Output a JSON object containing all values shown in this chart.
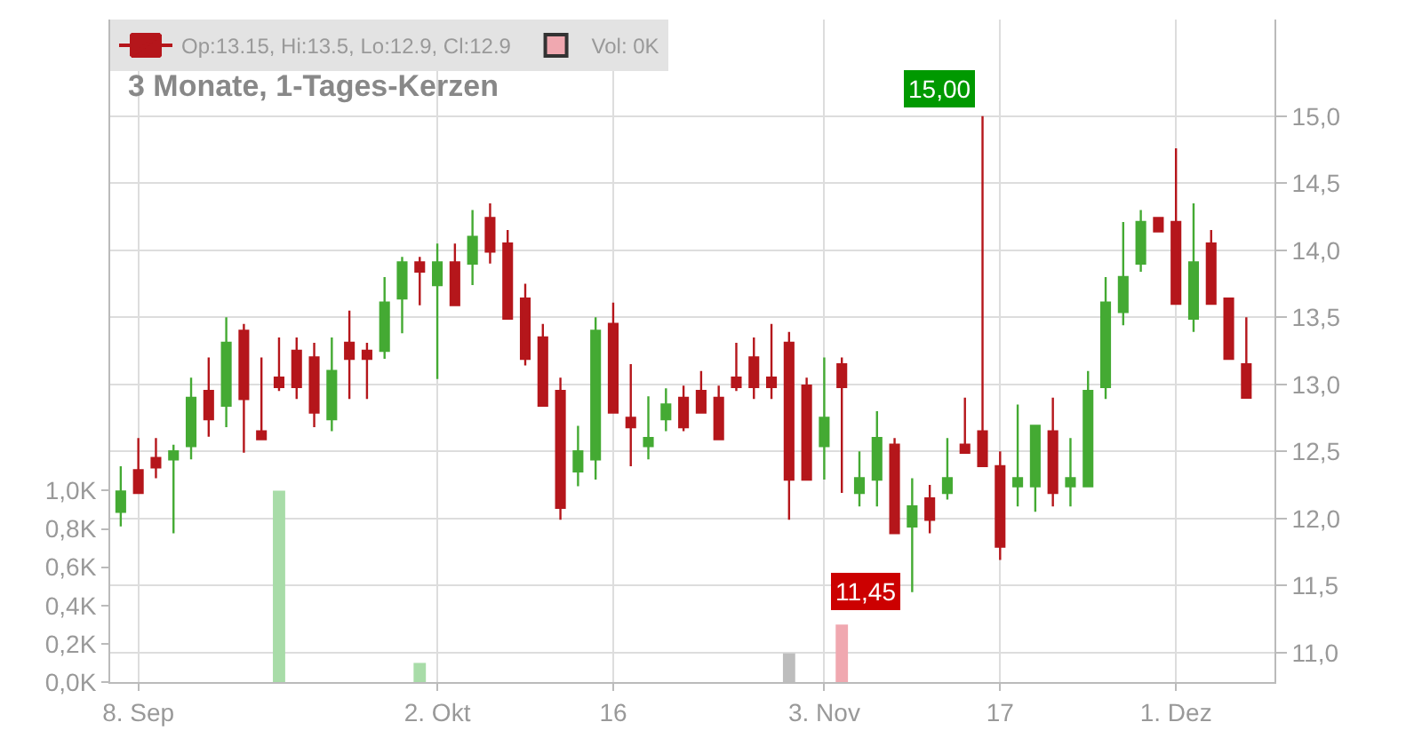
{
  "chart_data": {
    "type": "candlestick",
    "title": "3 Monate, 1-Tages-Kerzen",
    "categories": [
      null,
      "8. Sep",
      null,
      null,
      null,
      null,
      null,
      null,
      null,
      null,
      null,
      null,
      null,
      null,
      null,
      null,
      null,
      null,
      "2. Okt",
      null,
      null,
      null,
      null,
      null,
      null,
      null,
      null,
      null,
      "16",
      null,
      null,
      null,
      null,
      null,
      null,
      null,
      null,
      null,
      null,
      null,
      "3. Nov",
      null,
      null,
      null,
      null,
      null,
      null,
      null,
      null,
      null,
      "17",
      null,
      null,
      null,
      null,
      null,
      null,
      null,
      null,
      null,
      "1. Dez",
      null,
      null,
      null,
      null
    ],
    "series": [
      {
        "name": "Op:13.15, Hi:13.5, Lo:12.9, Cl:12.9",
        "color": "#b5161b",
        "ohlc": [
          [
            12.05,
            12.39,
            11.94,
            12.2
          ],
          [
            12.36,
            12.6,
            12.19,
            12.19
          ],
          [
            12.45,
            12.6,
            12.3,
            12.38
          ],
          [
            12.44,
            12.55,
            11.89,
            12.5
          ],
          [
            12.54,
            13.05,
            12.44,
            12.9
          ],
          [
            12.95,
            13.2,
            12.61,
            12.74
          ],
          [
            12.84,
            13.5,
            12.68,
            13.31
          ],
          [
            13.4,
            13.45,
            12.49,
            12.89
          ],
          [
            12.65,
            13.2,
            12.59,
            12.59
          ],
          [
            13.05,
            13.35,
            12.95,
            12.98
          ],
          [
            13.25,
            13.35,
            12.89,
            12.98
          ],
          [
            13.2,
            13.31,
            12.68,
            12.79
          ],
          [
            12.74,
            13.35,
            12.65,
            13.1
          ],
          [
            13.31,
            13.55,
            12.89,
            13.19
          ],
          [
            13.25,
            13.31,
            12.89,
            13.19
          ],
          [
            13.25,
            13.8,
            13.19,
            13.61
          ],
          [
            13.64,
            13.95,
            13.38,
            13.91
          ],
          [
            13.91,
            13.95,
            13.59,
            13.84
          ],
          [
            13.74,
            14.05,
            13.04,
            13.91
          ],
          [
            13.91,
            14.05,
            13.59,
            13.59
          ],
          [
            13.9,
            14.3,
            13.74,
            14.1
          ],
          [
            14.24,
            14.35,
            13.9,
            13.99
          ],
          [
            14.05,
            14.15,
            13.49,
            13.49
          ],
          [
            13.64,
            13.75,
            13.14,
            13.19
          ],
          [
            13.35,
            13.45,
            12.84,
            12.84
          ],
          [
            12.95,
            13.05,
            11.99,
            12.08
          ],
          [
            12.35,
            12.69,
            12.24,
            12.5
          ],
          [
            12.44,
            13.5,
            12.29,
            13.4
          ],
          [
            13.45,
            13.61,
            12.79,
            12.79
          ],
          [
            12.75,
            13.15,
            12.39,
            12.68
          ],
          [
            12.54,
            12.91,
            12.44,
            12.6
          ],
          [
            12.74,
            12.97,
            12.65,
            12.85
          ],
          [
            12.9,
            12.99,
            12.65,
            12.68
          ],
          [
            12.95,
            13.1,
            12.79,
            12.79
          ],
          [
            12.9,
            12.99,
            12.59,
            12.59
          ],
          [
            13.05,
            13.31,
            12.95,
            12.98
          ],
          [
            13.2,
            13.35,
            12.89,
            12.98
          ],
          [
            13.05,
            13.45,
            12.89,
            12.98
          ],
          [
            13.31,
            13.39,
            11.99,
            12.29
          ],
          [
            12.99,
            13.05,
            12.29,
            12.29
          ],
          [
            12.54,
            13.2,
            12.29,
            12.75
          ],
          [
            13.15,
            13.2,
            12.19,
            12.98
          ],
          [
            12.19,
            12.5,
            12.09,
            12.3
          ],
          [
            12.29,
            12.8,
            12.09,
            12.6
          ],
          [
            12.55,
            12.6,
            11.89,
            11.89
          ],
          [
            11.94,
            12.3,
            11.45,
            12.09
          ],
          [
            12.15,
            12.25,
            11.89,
            11.99
          ],
          [
            12.19,
            12.6,
            12.14,
            12.3
          ],
          [
            12.55,
            12.9,
            12.49,
            12.49
          ],
          [
            12.65,
            15.0,
            12.39,
            12.39
          ],
          [
            12.39,
            12.5,
            11.69,
            11.79
          ],
          [
            12.24,
            12.85,
            12.09,
            12.3
          ],
          [
            12.24,
            12.69,
            12.05,
            12.69
          ],
          [
            12.65,
            12.9,
            12.09,
            12.19
          ],
          [
            12.24,
            12.6,
            12.09,
            12.3
          ],
          [
            12.24,
            13.1,
            12.24,
            12.95
          ],
          [
            12.98,
            13.8,
            12.89,
            13.61
          ],
          [
            13.54,
            14.21,
            13.44,
            13.8
          ],
          [
            13.9,
            14.3,
            13.84,
            14.21
          ],
          [
            14.24,
            14.24,
            14.14,
            14.14
          ],
          [
            14.21,
            14.76,
            13.6,
            13.6
          ],
          [
            13.49,
            14.35,
            13.39,
            13.91
          ],
          [
            14.05,
            14.15,
            13.6,
            13.6
          ],
          [
            13.64,
            13.64,
            13.19,
            13.19
          ],
          [
            13.15,
            13.5,
            12.9,
            12.9
          ]
        ],
        "colors": [
          "#44aa33",
          "#b5161b",
          "#b5161b",
          "#44aa33",
          "#44aa33",
          "#b5161b",
          "#44aa33",
          "#b5161b",
          "#b5161b",
          "#b5161b",
          "#b5161b",
          "#b5161b",
          "#44aa33",
          "#b5161b",
          "#b5161b",
          "#44aa33",
          "#44aa33",
          "#b5161b",
          "#44aa33",
          "#b5161b",
          "#44aa33",
          "#b5161b",
          "#b5161b",
          "#b5161b",
          "#b5161b",
          "#b5161b",
          "#44aa33",
          "#44aa33",
          "#b5161b",
          "#b5161b",
          "#44aa33",
          "#44aa33",
          "#b5161b",
          "#b5161b",
          "#b5161b",
          "#b5161b",
          "#b5161b",
          "#b5161b",
          "#b5161b",
          "#b5161b",
          "#44aa33",
          "#b5161b",
          "#44aa33",
          "#44aa33",
          "#b5161b",
          "#44aa33",
          "#b5161b",
          "#44aa33",
          "#b5161b",
          "#b5161b",
          "#b5161b",
          "#44aa33",
          "#44aa33",
          "#b5161b",
          "#44aa33",
          "#44aa33",
          "#44aa33",
          "#44aa33",
          "#44aa33",
          "#b5161b",
          "#b5161b",
          "#44aa33",
          "#b5161b",
          "#b5161b",
          "#b5161b"
        ]
      },
      {
        "name": "Vol: 0K",
        "type": "bar",
        "axis": "y2",
        "color": "#f0a8b0",
        "values": [
          null,
          null,
          null,
          null,
          null,
          null,
          null,
          null,
          null,
          1.0,
          null,
          null,
          null,
          null,
          null,
          null,
          null,
          0.1,
          null,
          null,
          null,
          null,
          null,
          null,
          null,
          null,
          null,
          null,
          null,
          null,
          null,
          null,
          null,
          null,
          null,
          null,
          null,
          null,
          0.15,
          null,
          null,
          0.3,
          null,
          null,
          null,
          null,
          null,
          null,
          null,
          null,
          null,
          null,
          null,
          null,
          null,
          null,
          null,
          null,
          null,
          null,
          null,
          null,
          null,
          null,
          null
        ],
        "colors": [
          null,
          null,
          null,
          null,
          null,
          null,
          null,
          null,
          null,
          "#a8dca8",
          null,
          null,
          null,
          null,
          null,
          null,
          null,
          "#a8dca8",
          null,
          null,
          null,
          null,
          null,
          null,
          null,
          null,
          null,
          null,
          null,
          null,
          null,
          null,
          null,
          null,
          null,
          null,
          null,
          null,
          "#bdbdbd",
          null,
          null,
          "#f0a8b0",
          null,
          null,
          null,
          null,
          null,
          null,
          null,
          null,
          null,
          null,
          null,
          null,
          null,
          null,
          null,
          null,
          null,
          null,
          null,
          null,
          null,
          null,
          null
        ]
      }
    ],
    "annotations": [
      "15,00",
      "11,45"
    ],
    "ylim": [
      10.78,
      15.72
    ],
    "yticks": [
      {
        "value": 11.0,
        "label": "11,0"
      },
      {
        "value": 11.5,
        "label": "11,5"
      },
      {
        "value": 12.0,
        "label": "12,0"
      },
      {
        "value": 12.5,
        "label": "12,5"
      },
      {
        "value": 13.0,
        "label": "13,0"
      },
      {
        "value": 13.5,
        "label": "13,5"
      },
      {
        "value": 14.0,
        "label": "14,0"
      },
      {
        "value": 14.5,
        "label": "14,5"
      },
      {
        "value": 15.0,
        "label": "15,0"
      }
    ],
    "y2lim": [
      0,
      3.46
    ],
    "y2ticks": [
      {
        "value": 0,
        "label": "0,0K"
      },
      {
        "value": 0.2,
        "label": "0,2K"
      },
      {
        "value": 0.4,
        "label": "0,4K"
      },
      {
        "value": 0.6,
        "label": "0,6K"
      },
      {
        "value": 0.8,
        "label": "0,8K"
      },
      {
        "value": 1.0,
        "label": "1,0K"
      }
    ],
    "grid": true,
    "legend": "top"
  }
}
